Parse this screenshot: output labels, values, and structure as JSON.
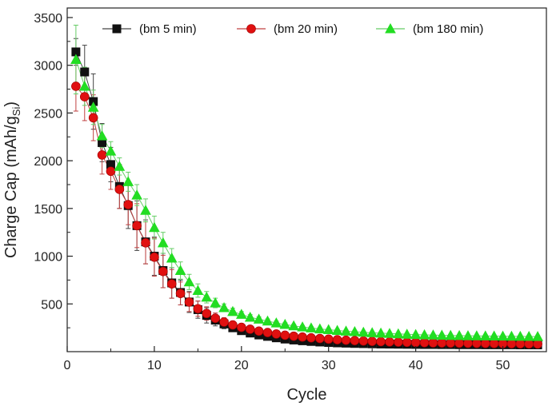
{
  "chart_data": {
    "type": "scatter",
    "title": "",
    "xlabel": "Cycle",
    "ylabel_main": "Charge Cap (mAh/g",
    "ylabel_sub": "Si",
    "ylabel_close": ")",
    "xlim": [
      0,
      55
    ],
    "ylim": [
      0,
      3600
    ],
    "xticks": [
      0,
      10,
      20,
      30,
      40,
      50
    ],
    "yticks": [
      500,
      1000,
      1500,
      2000,
      2500,
      3000,
      3500
    ],
    "legend_position": "top",
    "series": [
      {
        "name": "(bm 5 min)",
        "color": "#111111",
        "line_color": "#444444",
        "marker": "square",
        "x": [
          1,
          2,
          3,
          4,
          5,
          6,
          7,
          8,
          9,
          10,
          11,
          12,
          13,
          14,
          15,
          16,
          17,
          18,
          19,
          20,
          21,
          22,
          23,
          24,
          25,
          26,
          27,
          28,
          29,
          30,
          31,
          32,
          33,
          34,
          35,
          36,
          37,
          38,
          39,
          40,
          41,
          42,
          43,
          44,
          45,
          46,
          47,
          48,
          49,
          50,
          51,
          52,
          53,
          54
        ],
        "values": [
          3140,
          2930,
          2620,
          2190,
          1960,
          1730,
          1530,
          1320,
          1150,
          1000,
          850,
          720,
          620,
          520,
          440,
          380,
          330,
          290,
          250,
          220,
          195,
          175,
          160,
          145,
          132,
          122,
          114,
          107,
          101,
          96,
          92,
          89,
          86,
          84,
          82,
          80,
          79,
          78,
          77,
          76,
          75,
          75,
          74,
          74,
          73,
          73,
          73,
          72,
          72,
          72,
          72,
          71,
          71,
          71
        ],
        "errors": [
          140,
          280,
          290,
          200,
          180,
          230,
          240,
          260,
          230,
          200,
          180,
          160,
          130,
          110,
          90,
          80,
          60,
          50,
          40,
          35,
          30,
          28,
          25,
          22,
          20,
          18,
          16,
          15,
          14,
          13,
          12,
          12,
          11,
          11,
          10,
          10,
          10,
          10,
          10,
          10,
          10,
          10,
          10,
          10,
          10,
          10,
          10,
          10,
          10,
          10,
          10,
          10,
          10,
          10
        ]
      },
      {
        "name": "(bm 20 min)",
        "color": "#e01010",
        "line_color": "#c04040",
        "marker": "circle",
        "x": [
          1,
          2,
          3,
          4,
          5,
          6,
          7,
          8,
          9,
          10,
          11,
          12,
          13,
          14,
          15,
          16,
          17,
          18,
          19,
          20,
          21,
          22,
          23,
          24,
          25,
          26,
          27,
          28,
          29,
          30,
          31,
          32,
          33,
          34,
          35,
          36,
          37,
          38,
          39,
          40,
          41,
          42,
          43,
          44,
          45,
          46,
          47,
          48,
          49,
          50,
          51,
          52,
          53,
          54
        ],
        "values": [
          2780,
          2670,
          2450,
          2060,
          1890,
          1700,
          1540,
          1320,
          1140,
          990,
          840,
          710,
          610,
          520,
          450,
          400,
          350,
          310,
          280,
          255,
          235,
          215,
          200,
          185,
          172,
          162,
          153,
          145,
          138,
          131,
          125,
          120,
          116,
          112,
          108,
          105,
          102,
          100,
          98,
          96,
          94,
          92,
          91,
          90,
          89,
          88,
          87,
          86,
          85,
          84,
          83,
          82,
          81,
          80
        ],
        "errors": [
          260,
          250,
          240,
          200,
          190,
          200,
          210,
          230,
          220,
          200,
          170,
          150,
          120,
          100,
          80,
          70,
          55,
          45,
          38,
          32,
          28,
          25,
          22,
          20,
          18,
          16,
          15,
          14,
          13,
          12,
          12,
          11,
          11,
          10,
          10,
          10,
          10,
          10,
          10,
          10,
          10,
          10,
          10,
          10,
          10,
          10,
          10,
          10,
          10,
          10,
          10,
          10,
          10,
          10
        ]
      },
      {
        "name": "(bm 180 min)",
        "color": "#22dd22",
        "line_color": "#66cc66",
        "marker": "triangle",
        "x": [
          1,
          2,
          3,
          4,
          5,
          6,
          7,
          8,
          9,
          10,
          11,
          12,
          13,
          14,
          15,
          16,
          17,
          18,
          19,
          20,
          21,
          22,
          23,
          24,
          25,
          26,
          27,
          28,
          29,
          30,
          31,
          32,
          33,
          34,
          35,
          36,
          37,
          38,
          39,
          40,
          41,
          42,
          43,
          44,
          45,
          46,
          47,
          48,
          49,
          50,
          51,
          52,
          53,
          54
        ],
        "values": [
          3060,
          2780,
          2560,
          2260,
          2100,
          1940,
          1780,
          1640,
          1480,
          1300,
          1140,
          980,
          850,
          730,
          640,
          570,
          510,
          460,
          420,
          390,
          360,
          340,
          320,
          300,
          285,
          270,
          258,
          248,
          238,
          230,
          222,
          215,
          209,
          203,
          198,
          194,
          190,
          186,
          182,
          179,
          176,
          174,
          172,
          170,
          168,
          166,
          165,
          164,
          163,
          162,
          161,
          160,
          159,
          158
        ],
        "errors": [
          360,
          200,
          180,
          120,
          100,
          90,
          100,
          110,
          120,
          120,
          110,
          100,
          90,
          80,
          70,
          60,
          50,
          40,
          35,
          30,
          28,
          25,
          22,
          20,
          18,
          16,
          15,
          14,
          13,
          12,
          12,
          11,
          11,
          10,
          10,
          10,
          10,
          10,
          10,
          10,
          10,
          10,
          10,
          10,
          10,
          10,
          10,
          10,
          10,
          10,
          10,
          10,
          10,
          10
        ]
      }
    ]
  }
}
